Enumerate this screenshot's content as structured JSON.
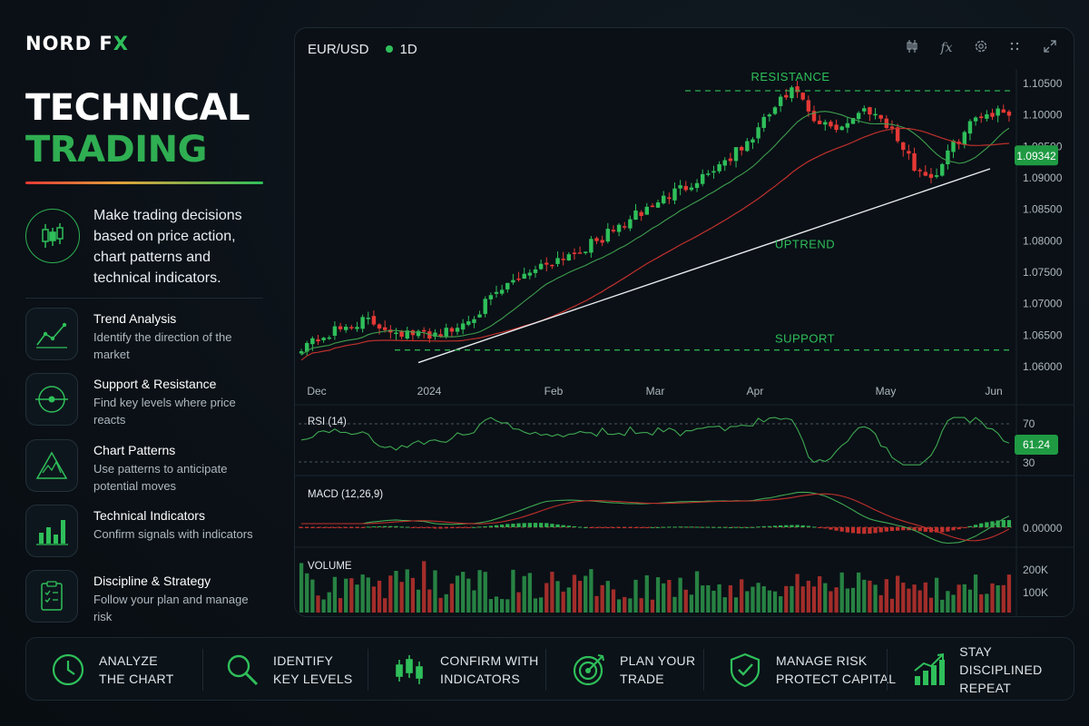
{
  "brand": {
    "name_main": "NORD F",
    "name_accent": "X"
  },
  "headline": {
    "line1": "TECHNICAL",
    "line2": "TRADING"
  },
  "intro": {
    "text": "Make trading decisions based on price action, chart patterns and technical indicators.",
    "icon": "candlestick-icon"
  },
  "features": [
    {
      "title": "Trend Analysis",
      "desc": "Identify the direction of the market",
      "icon": "trend-line-icon"
    },
    {
      "title": "Support & Resistance",
      "desc": "Find key levels where price reacts",
      "icon": "levels-icon"
    },
    {
      "title": "Chart Patterns",
      "desc": "Use patterns to anticipate potential moves",
      "icon": "triangle-pattern-icon"
    },
    {
      "title": "Technical Indicators",
      "desc": "Confirm signals with indicators",
      "icon": "bar-chart-icon"
    },
    {
      "title": "Discipline & Strategy",
      "desc": "Follow your plan and manage risk",
      "icon": "clipboard-checklist-icon"
    }
  ],
  "chart_header": {
    "symbol": "EUR/USD",
    "timeframe": "1D"
  },
  "toolbar": [
    "candles-icon",
    "fx-icon",
    "gear-icon",
    "grid-icon",
    "expand-icon"
  ],
  "colors": {
    "up": "#2fbf5a",
    "down": "#e53935",
    "accent": "#2fae52",
    "background": "#0b1117"
  },
  "chart_data": {
    "type": "candlestick",
    "x_labels": [
      "Dec",
      "2024",
      "Feb",
      "Mar",
      "Apr",
      "May",
      "Jun"
    ],
    "y_ticks": [
      "1.10500",
      "1.10000",
      "1.09500",
      "1.09000",
      "1.08500",
      "1.08000",
      "1.07500",
      "1.07000",
      "1.06500",
      "1.06000"
    ],
    "ylim": [
      1.06,
      1.105
    ],
    "current_price": "1.09342",
    "annotations": {
      "resistance": "RESISTANCE",
      "support": "SUPPORT",
      "uptrend": "UPTREND"
    },
    "rsi": {
      "label": "RSI (14)",
      "levels": [
        "70",
        "30"
      ],
      "value": "61.24"
    },
    "macd": {
      "label": "MACD (12,26,9)",
      "zero": "0.00000"
    },
    "volume": {
      "label": "VOLUME",
      "ticks": [
        "200K",
        "100K"
      ]
    }
  },
  "steps": [
    {
      "l1": "ANALYZE",
      "l2": "THE CHART",
      "icon": "clock-icon"
    },
    {
      "l1": "IDENTIFY",
      "l2": "KEY LEVELS",
      "icon": "magnifier-icon"
    },
    {
      "l1": "CONFIRM WITH",
      "l2": "INDICATORS",
      "icon": "candles-icon"
    },
    {
      "l1": "PLAN YOUR",
      "l2": "TRADE",
      "icon": "target-icon"
    },
    {
      "l1": "MANAGE RISK",
      "l2": "PROTECT CAPITAL",
      "icon": "shield-check-icon"
    },
    {
      "l1": "STAY DISCIPLINED",
      "l2": "REPEAT",
      "icon": "growth-chart-icon"
    }
  ]
}
